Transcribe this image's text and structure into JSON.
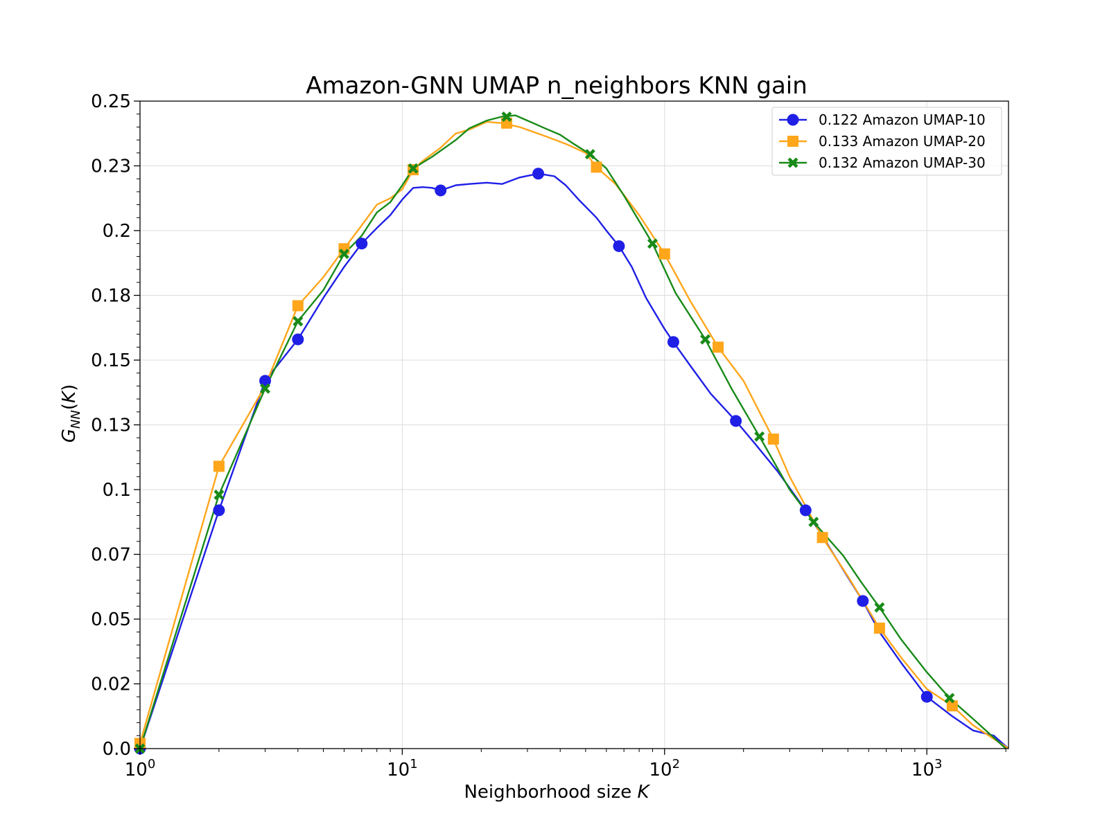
{
  "chart_data": {
    "type": "line",
    "title": "Amazon-GNN UMAP n_neighbors KNN gain",
    "xlabel": "Neighborhood size K",
    "xlabel_parts": [
      "Neighborhood size ",
      "K"
    ],
    "ylabel_parts": [
      "G",
      "NN",
      "(",
      "K",
      ")"
    ],
    "x_scale": "log",
    "xlim": [
      1,
      2048
    ],
    "ylim": [
      0,
      0.25
    ],
    "x_ticks": [
      1,
      10,
      100,
      1000
    ],
    "x_tick_labels": [
      "10",
      "10",
      "10",
      "10"
    ],
    "x_tick_exponents": [
      "0",
      "1",
      "2",
      "3"
    ],
    "y_ticks": [
      0,
      0.025,
      0.05,
      0.075,
      0.1,
      0.125,
      0.15,
      0.175,
      0.2,
      0.225,
      0.25
    ],
    "y_tick_labels": [
      "0.0",
      "0.02",
      "0.05",
      "0.07",
      "0.1",
      "0.13",
      "0.15",
      "0.18",
      "0.2",
      "0.23",
      "0.25"
    ],
    "grid": true,
    "legend_position": "top-right",
    "series": [
      {
        "name": "0.122 Amazon UMAP-10",
        "color": "#1f1fe6",
        "marker": "circle",
        "line": [
          [
            1,
            0.0
          ],
          [
            2,
            0.092
          ],
          [
            3,
            0.142
          ],
          [
            4,
            0.158
          ],
          [
            5,
            0.174
          ],
          [
            6,
            0.186
          ],
          [
            7,
            0.195
          ],
          [
            8,
            0.201
          ],
          [
            9,
            0.206
          ],
          [
            10,
            0.212
          ],
          [
            11,
            0.2165
          ],
          [
            12,
            0.2168
          ],
          [
            13,
            0.2165
          ],
          [
            14,
            0.2155
          ],
          [
            16,
            0.2175
          ],
          [
            18,
            0.218
          ],
          [
            21,
            0.2185
          ],
          [
            24,
            0.218
          ],
          [
            28,
            0.2205
          ],
          [
            33,
            0.222
          ],
          [
            38,
            0.221
          ],
          [
            42,
            0.2175
          ],
          [
            47,
            0.212
          ],
          [
            55,
            0.205
          ],
          [
            60,
            0.2
          ],
          [
            67,
            0.194
          ],
          [
            75,
            0.186
          ],
          [
            85,
            0.174
          ],
          [
            100,
            0.162
          ],
          [
            108,
            0.157
          ],
          [
            125,
            0.148
          ],
          [
            150,
            0.137
          ],
          [
            187,
            0.1265
          ],
          [
            220,
            0.118
          ],
          [
            270,
            0.107
          ],
          [
            345,
            0.092
          ],
          [
            400,
            0.082
          ],
          [
            480,
            0.069
          ],
          [
            570,
            0.057
          ],
          [
            660,
            0.045
          ],
          [
            800,
            0.033
          ],
          [
            1000,
            0.02
          ],
          [
            1250,
            0.0125
          ],
          [
            1500,
            0.007
          ],
          [
            1800,
            0.005
          ],
          [
            2048,
            0.0
          ]
        ],
        "markers": [
          [
            1,
            0.0
          ],
          [
            2,
            0.092
          ],
          [
            3,
            0.142
          ],
          [
            4,
            0.158
          ],
          [
            7,
            0.195
          ],
          [
            14,
            0.2155
          ],
          [
            33,
            0.222
          ],
          [
            67,
            0.194
          ],
          [
            108,
            0.157
          ],
          [
            187,
            0.1265
          ],
          [
            345,
            0.092
          ],
          [
            570,
            0.057
          ],
          [
            1000,
            0.02
          ]
        ]
      },
      {
        "name": "0.133 Amazon UMAP-20",
        "color": "#ffa61a",
        "marker": "square",
        "line": [
          [
            1,
            0.002
          ],
          [
            2,
            0.109
          ],
          [
            3,
            0.14
          ],
          [
            4,
            0.171
          ],
          [
            5,
            0.182
          ],
          [
            6,
            0.193
          ],
          [
            7,
            0.202
          ],
          [
            8,
            0.21
          ],
          [
            9,
            0.2125
          ],
          [
            10,
            0.216
          ],
          [
            11,
            0.2235
          ],
          [
            12,
            0.227
          ],
          [
            14,
            0.232
          ],
          [
            16,
            0.2375
          ],
          [
            18,
            0.239
          ],
          [
            21,
            0.242
          ],
          [
            24,
            0.2415
          ],
          [
            28,
            0.24
          ],
          [
            35,
            0.2365
          ],
          [
            42,
            0.2335
          ],
          [
            50,
            0.23
          ],
          [
            55,
            0.2245
          ],
          [
            65,
            0.218
          ],
          [
            80,
            0.206
          ],
          [
            100,
            0.191
          ],
          [
            125,
            0.173
          ],
          [
            160,
            0.155
          ],
          [
            200,
            0.142
          ],
          [
            260,
            0.1195
          ],
          [
            300,
            0.105
          ],
          [
            400,
            0.0815
          ],
          [
            500,
            0.0665
          ],
          [
            660,
            0.0465
          ],
          [
            800,
            0.035
          ],
          [
            1000,
            0.023
          ],
          [
            1250,
            0.0165
          ],
          [
            1500,
            0.009
          ],
          [
            2048,
            0.0
          ]
        ],
        "markers": [
          [
            1,
            0.002
          ],
          [
            2,
            0.109
          ],
          [
            4,
            0.171
          ],
          [
            6,
            0.193
          ],
          [
            11,
            0.2235
          ],
          [
            25,
            0.2415
          ],
          [
            55,
            0.2245
          ],
          [
            100,
            0.191
          ],
          [
            160,
            0.155
          ],
          [
            260,
            0.1195
          ],
          [
            400,
            0.0815
          ],
          [
            660,
            0.0465
          ],
          [
            1250,
            0.0165
          ]
        ]
      },
      {
        "name": "0.132 Amazon UMAP-30",
        "color": "#188a18",
        "marker": "x",
        "line": [
          [
            1,
            0.0
          ],
          [
            2,
            0.098
          ],
          [
            3,
            0.139
          ],
          [
            4,
            0.165
          ],
          [
            5,
            0.177
          ],
          [
            6,
            0.191
          ],
          [
            7,
            0.198
          ],
          [
            8,
            0.207
          ],
          [
            9,
            0.211
          ],
          [
            10,
            0.2175
          ],
          [
            11,
            0.224
          ],
          [
            13,
            0.2285
          ],
          [
            16,
            0.235
          ],
          [
            18,
            0.2395
          ],
          [
            21,
            0.2425
          ],
          [
            24,
            0.244
          ],
          [
            27,
            0.2445
          ],
          [
            30,
            0.2425
          ],
          [
            35,
            0.2395
          ],
          [
            40,
            0.237
          ],
          [
            45,
            0.2335
          ],
          [
            52,
            0.2295
          ],
          [
            60,
            0.224
          ],
          [
            70,
            0.2135
          ],
          [
            90,
            0.195
          ],
          [
            110,
            0.176
          ],
          [
            143,
            0.158
          ],
          [
            180,
            0.139
          ],
          [
            230,
            0.1205
          ],
          [
            300,
            0.1
          ],
          [
            370,
            0.0875
          ],
          [
            480,
            0.0745
          ],
          [
            560,
            0.0645
          ],
          [
            660,
            0.0545
          ],
          [
            800,
            0.042
          ],
          [
            1000,
            0.0295
          ],
          [
            1220,
            0.0195
          ],
          [
            1500,
            0.0115
          ],
          [
            2000,
            0.0
          ]
        ],
        "markers": [
          [
            1,
            0.0
          ],
          [
            2,
            0.098
          ],
          [
            3,
            0.139
          ],
          [
            4,
            0.165
          ],
          [
            6,
            0.191
          ],
          [
            11,
            0.224
          ],
          [
            25,
            0.244
          ],
          [
            52,
            0.2295
          ],
          [
            90,
            0.195
          ],
          [
            143,
            0.158
          ],
          [
            230,
            0.1205
          ],
          [
            370,
            0.0875
          ],
          [
            660,
            0.0545
          ],
          [
            1220,
            0.0195
          ]
        ]
      }
    ]
  }
}
